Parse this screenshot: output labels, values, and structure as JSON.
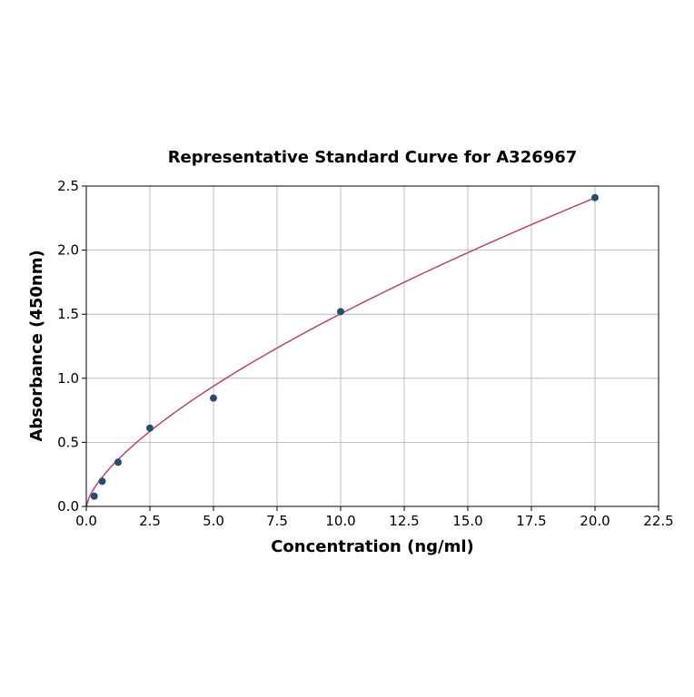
{
  "chart_data": {
    "type": "scatter",
    "title": "Representative Standard Curve for A326967",
    "xlabel": "Concentration (ng/ml)",
    "ylabel": "Absorbance (450nm)",
    "xlim": [
      0,
      22.5
    ],
    "ylim": [
      0,
      2.5
    ],
    "xticks": [
      "0.0",
      "2.5",
      "5.0",
      "7.5",
      "10.0",
      "12.5",
      "15.0",
      "17.5",
      "20.0",
      "22.5"
    ],
    "yticks": [
      "0.0",
      "0.5",
      "1.0",
      "1.5",
      "2.0",
      "2.5"
    ],
    "grid": true,
    "points": {
      "x": [
        0.3125,
        0.625,
        1.25,
        2.5,
        5,
        10,
        20
      ],
      "y": [
        0.08,
        0.196,
        0.345,
        0.611,
        0.845,
        1.52,
        2.41
      ]
    },
    "fit_curve": {
      "type": "power",
      "a": 0.314,
      "b": 0.68,
      "x_range": [
        0,
        20
      ]
    },
    "colors": {
      "points": "#2a4a6e",
      "curve": "#b5466b",
      "grid": "#b0b0b0"
    }
  }
}
